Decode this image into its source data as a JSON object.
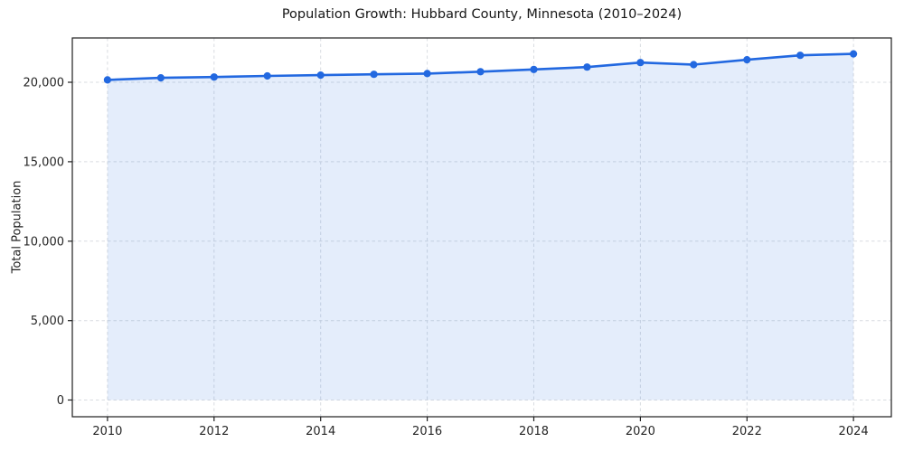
{
  "chart_data": {
    "type": "line",
    "title": "Population Growth: Hubbard County, Minnesota (2010–2024)",
    "ylabel": "Total Population",
    "x": [
      2010,
      2011,
      2012,
      2013,
      2014,
      2015,
      2016,
      2017,
      2018,
      2019,
      2020,
      2021,
      2022,
      2023,
      2024
    ],
    "values": [
      20150,
      20280,
      20330,
      20400,
      20450,
      20500,
      20550,
      20670,
      20810,
      20960,
      21240,
      21110,
      21420,
      21700,
      21790
    ],
    "x_ticks": {
      "values": [
        2010,
        2012,
        2014,
        2016,
        2018,
        2020,
        2022,
        2024
      ],
      "labels": [
        "2010",
        "2012",
        "2014",
        "2016",
        "2018",
        "2020",
        "2022",
        "2024"
      ]
    },
    "y_ticks": {
      "values": [
        0,
        5000,
        10000,
        15000,
        20000
      ],
      "labels": [
        "0",
        "5,000",
        "10,000",
        "15,000",
        "20,000"
      ]
    },
    "xlim": [
      2009.34,
      2024.71
    ],
    "ylim": [
      -1050,
      22790
    ],
    "grid": true,
    "grid_style": "dashed",
    "legend": false,
    "marker": "circle",
    "area_fill": true,
    "area_baseline": 0,
    "colors": {
      "line": "#2268e0",
      "marker": "#2268e0",
      "fill": "rgba(34, 104, 224, 0.12)",
      "grid": "#d9dce1",
      "spine": "#1f1f1f",
      "tick_text": "#262626",
      "title_text": "#151515"
    }
  }
}
